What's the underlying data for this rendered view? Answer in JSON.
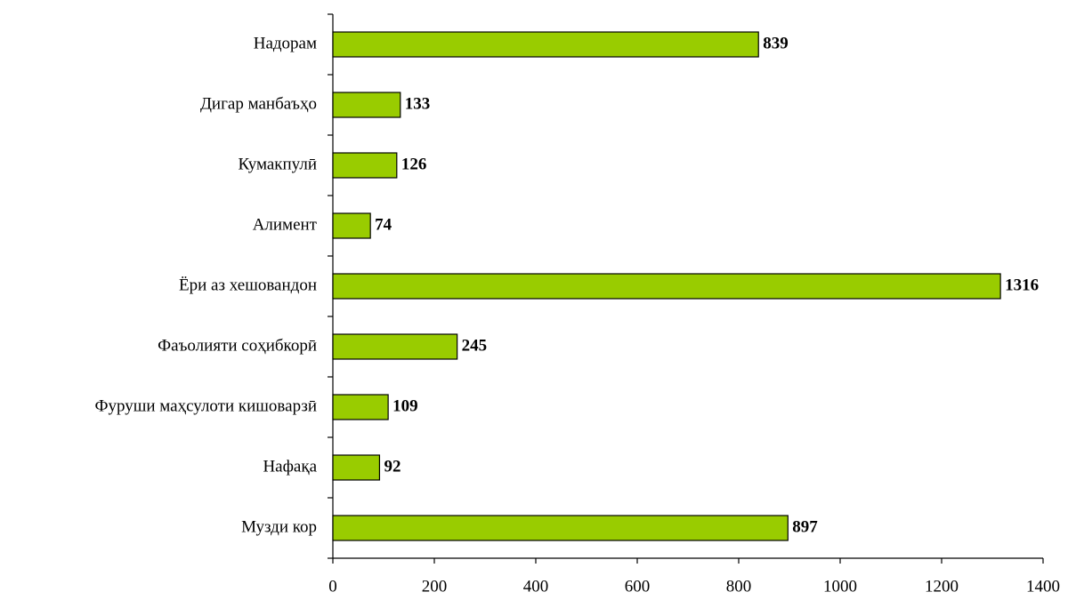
{
  "chart_data": {
    "type": "hbar",
    "categories": [
      "Надорам",
      "Дигар манбаъҳо",
      "Кумакпулӣ",
      "Алимент",
      "Ёри аз хешовандон",
      "Фаъолияти соҳибкорӣ",
      "Фуруши маҳсулоти кишоварзӣ",
      "Нафақа",
      "Музди кор"
    ],
    "values": [
      839,
      133,
      126,
      74,
      1316,
      245,
      109,
      92,
      897
    ],
    "color": "#99cc00",
    "xlim": [
      0,
      1400
    ],
    "xticks": [
      0,
      200,
      400,
      600,
      800,
      1000,
      1200,
      1400
    ],
    "grid": false
  }
}
